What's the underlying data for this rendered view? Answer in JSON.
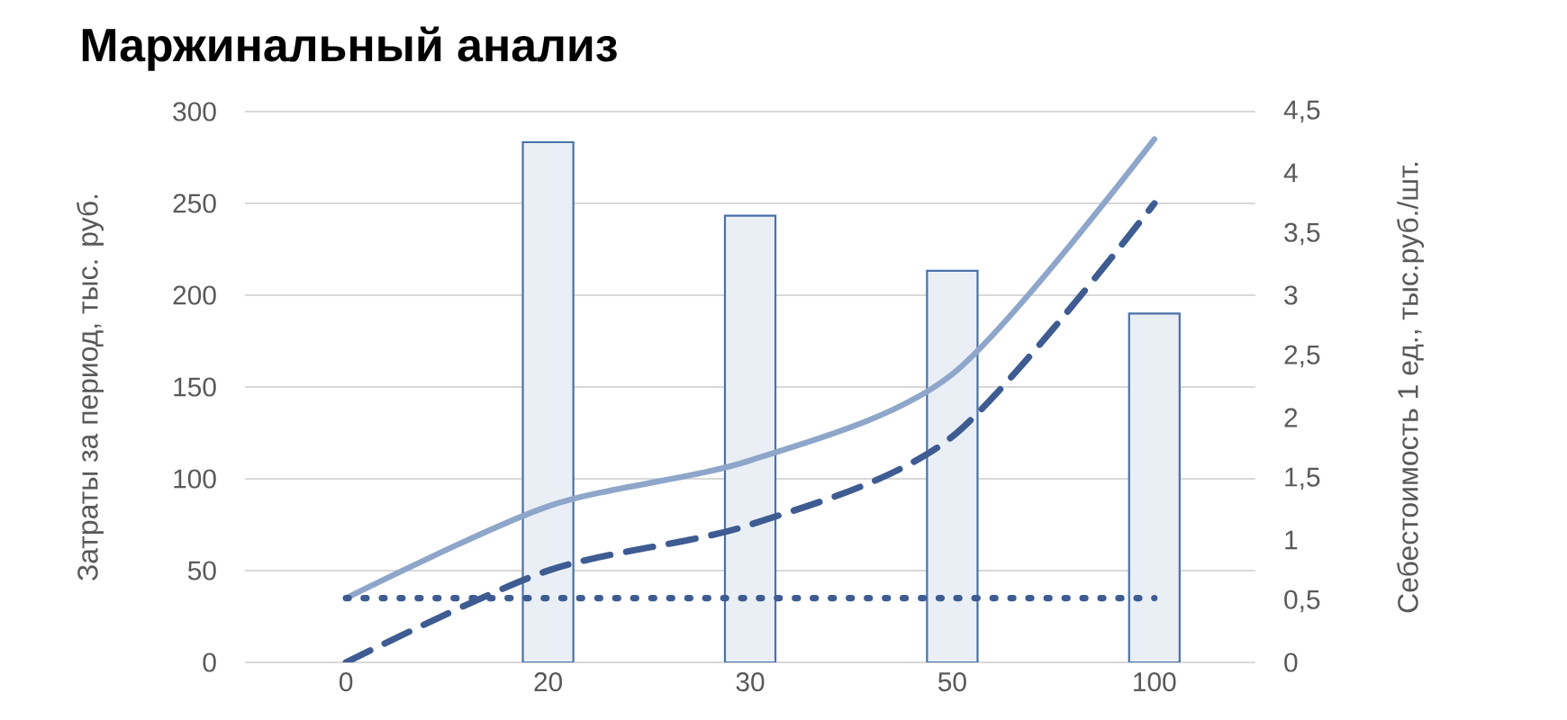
{
  "chart_data": {
    "type": "line",
    "title": "Маржинальный анализ",
    "ylabel": "Затраты за период, тыс. руб.",
    "y2label": "Себестоимость 1 ед., тыс.руб./шт.",
    "categories": [
      "0",
      "20",
      "30",
      "50",
      "100"
    ],
    "series": [
      {
        "type": "bar",
        "axis": "y2",
        "color": "#eaeff6",
        "values": [
          null,
          4.25,
          3.65,
          3.2,
          2.85
        ]
      },
      {
        "color": "#8ea6c9",
        "line_style": "solid",
        "values": [
          35,
          85,
          110,
          157,
          285
        ]
      },
      {
        "color": "#3e5c92",
        "line_style": "dashed",
        "values": [
          0,
          50,
          75,
          123,
          250
        ]
      },
      {
        "color": "#3e5c92",
        "line_style": "dotted",
        "values": [
          35,
          35,
          35,
          35,
          35
        ]
      }
    ],
    "ylim": [
      0,
      300
    ],
    "yticks": [
      0,
      50,
      100,
      150,
      200,
      250,
      300
    ],
    "y2lim": [
      0,
      4.5
    ],
    "y2ticks": [
      0,
      {
        "value": 0.5,
        "label": "0,5"
      },
      1,
      {
        "value": 1.5,
        "label": "1,5"
      },
      2,
      {
        "value": 2.5,
        "label": "2,5"
      },
      3,
      {
        "value": 3.5,
        "label": "3,5"
      },
      4,
      {
        "value": 4.5,
        "label": "4,5"
      }
    ],
    "grid": "y"
  }
}
